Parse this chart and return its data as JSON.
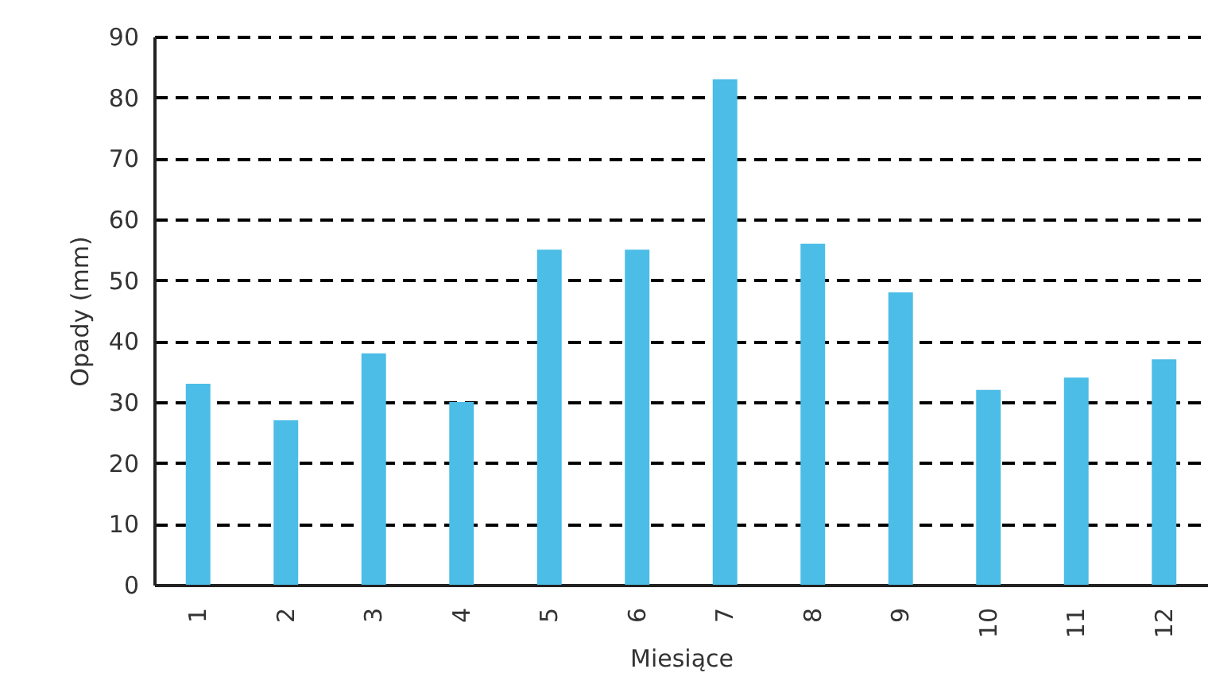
{
  "chart_data": {
    "type": "bar",
    "xlabel": "Miesiące",
    "ylabel": "Opady (mm)",
    "categories": [
      "1",
      "2",
      "3",
      "4",
      "5",
      "6",
      "7",
      "8",
      "9",
      "10",
      "11",
      "12"
    ],
    "values": [
      33,
      27,
      38,
      30,
      55,
      55,
      83,
      56,
      48,
      32,
      34,
      37
    ],
    "color": "#4bbde6",
    "ylim": [
      0,
      90
    ],
    "yticks": [
      0,
      10,
      20,
      30,
      40,
      50,
      60,
      70,
      80,
      90
    ],
    "grid": "y",
    "line_style": "dashed"
  }
}
